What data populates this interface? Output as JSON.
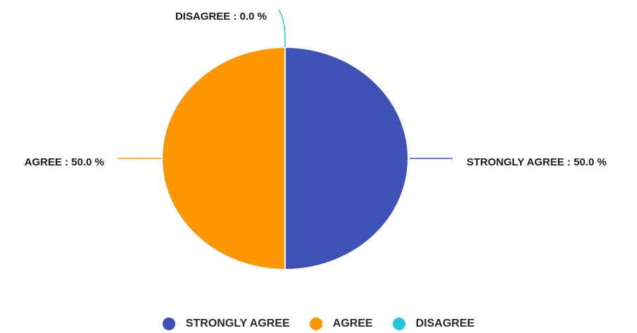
{
  "chart_data": {
    "type": "pie",
    "slices": [
      {
        "name": "STRONGLY AGREE",
        "value": 50.0,
        "label": "STRONGLY AGREE : 50.0 %",
        "color": "#3f51b5"
      },
      {
        "name": "AGREE",
        "value": 50.0,
        "label": "AGREE : 50.0 %",
        "color": "#ff9800"
      },
      {
        "name": "DISAGREE",
        "value": 0.0,
        "label": "DISAGREE : 0.0 %",
        "color": "#26c6da"
      }
    ],
    "start_angle_deg": 0,
    "direction": "clockwise",
    "legend_position": "bottom"
  },
  "legend": [
    {
      "label": "STRONGLY AGREE",
      "color": "#3f51b5"
    },
    {
      "label": "AGREE",
      "color": "#ff9800"
    },
    {
      "label": "DISAGREE",
      "color": "#26c6da"
    }
  ]
}
